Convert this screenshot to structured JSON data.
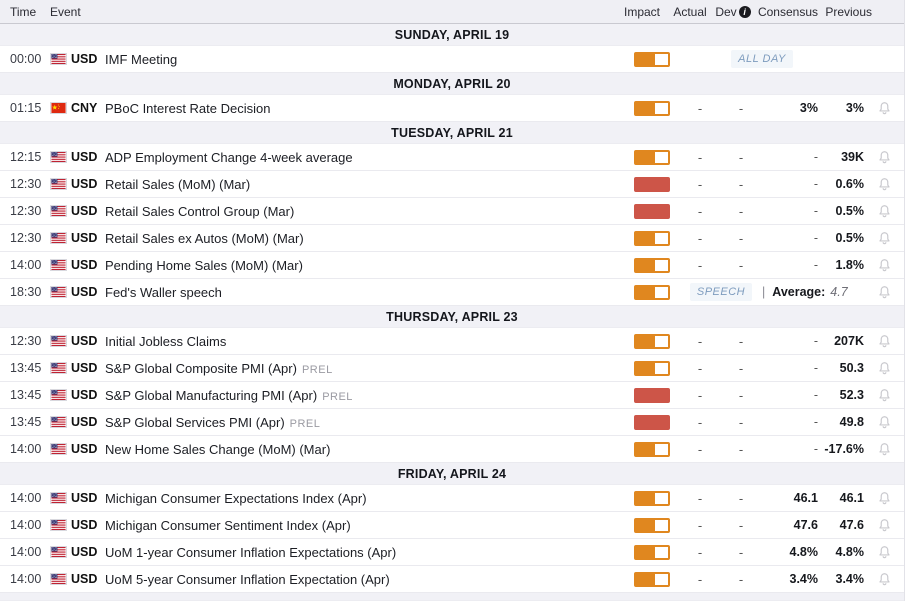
{
  "table_header": {
    "time": "Time",
    "event": "Event",
    "impact": "Impact",
    "actual": "Actual",
    "dev": "Dev",
    "dev_info_icon": "i",
    "consensus": "Consensus",
    "previous": "Previous"
  },
  "colors": {
    "impact_medium": "#E0871F",
    "impact_high": "#CD5548",
    "badge_text": "#7E9CBE",
    "badge_bg": "#F2F6FA",
    "header_bg": "#EFEFF4",
    "day_row_bg": "#F1F1F6"
  },
  "sections": [
    {
      "day": "SUNDAY, APRIL 19",
      "events": [
        {
          "time": "00:00",
          "currency": "USD",
          "flag": "us",
          "name": "IMF Meeting",
          "suffix": "",
          "impact": "medium",
          "badge": "ALL DAY",
          "bell": false
        }
      ]
    },
    {
      "day": "MONDAY, APRIL 20",
      "events": [
        {
          "time": "01:15",
          "currency": "CNY",
          "flag": "cn",
          "name": "PBoC Interest Rate Decision",
          "suffix": "",
          "impact": "medium",
          "actual": "-",
          "dev": "-",
          "consensus": "3%",
          "previous": "3%",
          "bell": true
        }
      ]
    },
    {
      "day": "TUESDAY, APRIL 21",
      "events": [
        {
          "time": "12:15",
          "currency": "USD",
          "flag": "us",
          "name": "ADP Employment Change 4-week average",
          "suffix": "",
          "impact": "medium",
          "actual": "-",
          "dev": "-",
          "consensus": "-",
          "previous": "39K",
          "bell": true
        },
        {
          "time": "12:30",
          "currency": "USD",
          "flag": "us",
          "name": "Retail Sales (MoM) (Mar)",
          "suffix": "",
          "impact": "high",
          "actual": "-",
          "dev": "-",
          "consensus": "-",
          "previous": "0.6%",
          "bell": true
        },
        {
          "time": "12:30",
          "currency": "USD",
          "flag": "us",
          "name": "Retail Sales Control Group (Mar)",
          "suffix": "",
          "impact": "high",
          "actual": "-",
          "dev": "-",
          "consensus": "-",
          "previous": "0.5%",
          "bell": true
        },
        {
          "time": "12:30",
          "currency": "USD",
          "flag": "us",
          "name": "Retail Sales ex Autos (MoM) (Mar)",
          "suffix": "",
          "impact": "medium",
          "actual": "-",
          "dev": "-",
          "consensus": "-",
          "previous": "0.5%",
          "bell": true
        },
        {
          "time": "14:00",
          "currency": "USD",
          "flag": "us",
          "name": "Pending Home Sales (MoM) (Mar)",
          "suffix": "",
          "impact": "medium",
          "actual": "-",
          "dev": "-",
          "consensus": "-",
          "previous": "1.8%",
          "bell": true
        },
        {
          "time": "18:30",
          "currency": "USD",
          "flag": "us",
          "name": "Fed's Waller speech",
          "suffix": "",
          "impact": "medium",
          "badge": "SPEECH",
          "average_sep": "|",
          "average_label": "Average:",
          "average_value": "4.7",
          "bell": true
        }
      ]
    },
    {
      "day": "THURSDAY, APRIL 23",
      "events": [
        {
          "time": "12:30",
          "currency": "USD",
          "flag": "us",
          "name": "Initial Jobless Claims",
          "suffix": "",
          "impact": "medium",
          "actual": "-",
          "dev": "-",
          "consensus": "-",
          "previous": "207K",
          "bell": true
        },
        {
          "time": "13:45",
          "currency": "USD",
          "flag": "us",
          "name": "S&P Global Composite PMI (Apr)",
          "suffix": "PREL",
          "impact": "medium",
          "actual": "-",
          "dev": "-",
          "consensus": "-",
          "previous": "50.3",
          "bell": true
        },
        {
          "time": "13:45",
          "currency": "USD",
          "flag": "us",
          "name": "S&P Global Manufacturing PMI (Apr)",
          "suffix": "PREL",
          "impact": "high",
          "actual": "-",
          "dev": "-",
          "consensus": "-",
          "previous": "52.3",
          "bell": true
        },
        {
          "time": "13:45",
          "currency": "USD",
          "flag": "us",
          "name": "S&P Global Services PMI (Apr)",
          "suffix": "PREL",
          "impact": "high",
          "actual": "-",
          "dev": "-",
          "consensus": "-",
          "previous": "49.8",
          "bell": true
        },
        {
          "time": "14:00",
          "currency": "USD",
          "flag": "us",
          "name": "New Home Sales Change (MoM) (Mar)",
          "suffix": "",
          "impact": "medium",
          "actual": "-",
          "dev": "-",
          "consensus": "-",
          "previous": "-17.6%",
          "bell": true
        }
      ]
    },
    {
      "day": "FRIDAY, APRIL 24",
      "events": [
        {
          "time": "14:00",
          "currency": "USD",
          "flag": "us",
          "name": "Michigan Consumer Expectations Index (Apr)",
          "suffix": "",
          "impact": "medium",
          "actual": "-",
          "dev": "-",
          "consensus": "46.1",
          "previous": "46.1",
          "bell": true
        },
        {
          "time": "14:00",
          "currency": "USD",
          "flag": "us",
          "name": "Michigan Consumer Sentiment Index (Apr)",
          "suffix": "",
          "impact": "medium",
          "actual": "-",
          "dev": "-",
          "consensus": "47.6",
          "previous": "47.6",
          "bell": true
        },
        {
          "time": "14:00",
          "currency": "USD",
          "flag": "us",
          "name": "UoM 1-year Consumer Inflation Expectations (Apr)",
          "suffix": "",
          "impact": "medium",
          "actual": "-",
          "dev": "-",
          "consensus": "4.8%",
          "previous": "4.8%",
          "bell": true
        },
        {
          "time": "14:00",
          "currency": "USD",
          "flag": "us",
          "name": "UoM 5-year Consumer Inflation Expectation (Apr)",
          "suffix": "",
          "impact": "medium",
          "actual": "-",
          "dev": "-",
          "consensus": "3.4%",
          "previous": "3.4%",
          "bell": true
        }
      ]
    }
  ]
}
